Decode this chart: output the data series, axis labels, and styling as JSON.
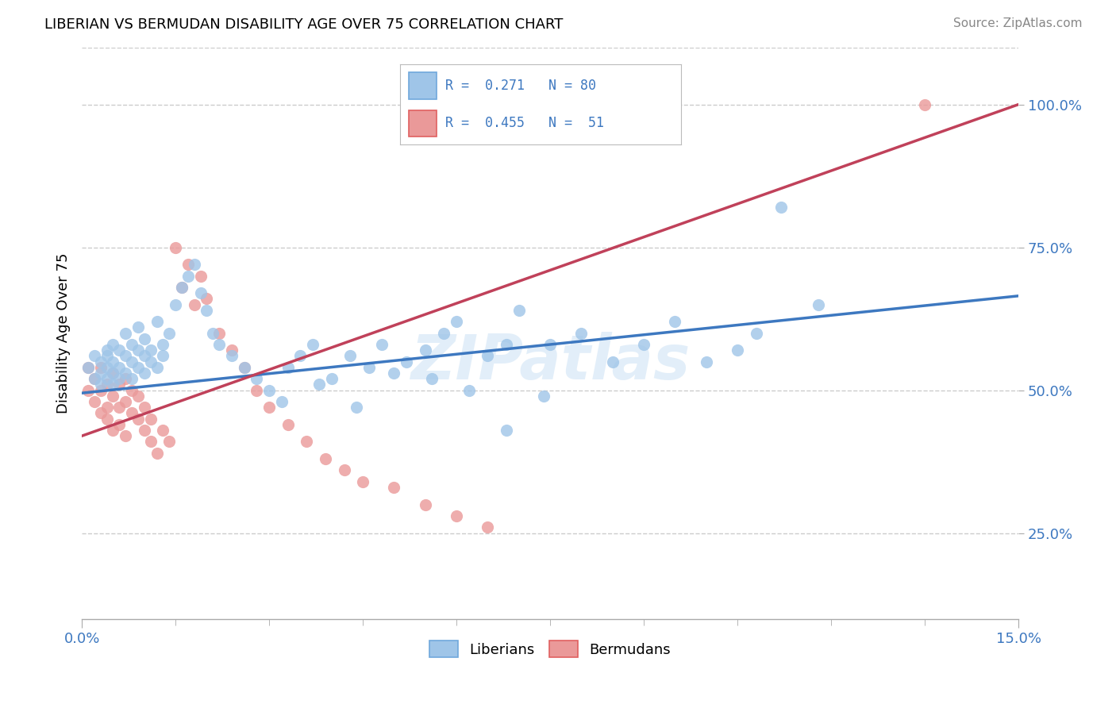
{
  "title": "LIBERIAN VS BERMUDAN DISABILITY AGE OVER 75 CORRELATION CHART",
  "source": "Source: ZipAtlas.com",
  "ylabel": "Disability Age Over 75",
  "legend_blue_label": "R =  0.271   N = 80",
  "legend_pink_label": "R =  0.455   N =  51",
  "legend_bottom_blue": "Liberians",
  "legend_bottom_pink": "Bermudans",
  "blue_color": "#9fc5e8",
  "pink_color": "#ea9999",
  "blue_line_color": "#3d78c0",
  "pink_line_color": "#c0415a",
  "xlim": [
    0.0,
    0.15
  ],
  "ylim": [
    0.1,
    1.1
  ],
  "blue_scatter_x": [
    0.001,
    0.002,
    0.002,
    0.003,
    0.003,
    0.003,
    0.004,
    0.004,
    0.004,
    0.004,
    0.005,
    0.005,
    0.005,
    0.005,
    0.006,
    0.006,
    0.006,
    0.007,
    0.007,
    0.007,
    0.008,
    0.008,
    0.008,
    0.009,
    0.009,
    0.009,
    0.01,
    0.01,
    0.01,
    0.011,
    0.011,
    0.012,
    0.012,
    0.013,
    0.013,
    0.014,
    0.015,
    0.016,
    0.017,
    0.018,
    0.019,
    0.02,
    0.021,
    0.022,
    0.024,
    0.026,
    0.028,
    0.03,
    0.033,
    0.035,
    0.037,
    0.04,
    0.043,
    0.046,
    0.048,
    0.052,
    0.055,
    0.058,
    0.06,
    0.065,
    0.068,
    0.07,
    0.075,
    0.08,
    0.085,
    0.09,
    0.095,
    0.1,
    0.105,
    0.108,
    0.032,
    0.038,
    0.044,
    0.05,
    0.056,
    0.062,
    0.068,
    0.074,
    0.112,
    0.118
  ],
  "blue_scatter_y": [
    0.54,
    0.52,
    0.56,
    0.53,
    0.55,
    0.51,
    0.54,
    0.57,
    0.52,
    0.56,
    0.53,
    0.55,
    0.58,
    0.51,
    0.57,
    0.54,
    0.52,
    0.56,
    0.6,
    0.53,
    0.55,
    0.58,
    0.52,
    0.57,
    0.54,
    0.61,
    0.56,
    0.53,
    0.59,
    0.55,
    0.57,
    0.54,
    0.62,
    0.58,
    0.56,
    0.6,
    0.65,
    0.68,
    0.7,
    0.72,
    0.67,
    0.64,
    0.6,
    0.58,
    0.56,
    0.54,
    0.52,
    0.5,
    0.54,
    0.56,
    0.58,
    0.52,
    0.56,
    0.54,
    0.58,
    0.55,
    0.57,
    0.6,
    0.62,
    0.56,
    0.58,
    0.64,
    0.58,
    0.6,
    0.55,
    0.58,
    0.62,
    0.55,
    0.57,
    0.6,
    0.48,
    0.51,
    0.47,
    0.53,
    0.52,
    0.5,
    0.43,
    0.49,
    0.82,
    0.65
  ],
  "pink_scatter_x": [
    0.001,
    0.001,
    0.002,
    0.002,
    0.003,
    0.003,
    0.003,
    0.004,
    0.004,
    0.004,
    0.005,
    0.005,
    0.005,
    0.006,
    0.006,
    0.006,
    0.007,
    0.007,
    0.007,
    0.008,
    0.008,
    0.009,
    0.009,
    0.01,
    0.01,
    0.011,
    0.011,
    0.012,
    0.013,
    0.014,
    0.015,
    0.016,
    0.017,
    0.018,
    0.019,
    0.02,
    0.022,
    0.024,
    0.026,
    0.028,
    0.03,
    0.033,
    0.036,
    0.039,
    0.042,
    0.045,
    0.05,
    0.055,
    0.06,
    0.065,
    0.135
  ],
  "pink_scatter_y": [
    0.5,
    0.54,
    0.48,
    0.52,
    0.46,
    0.5,
    0.54,
    0.47,
    0.51,
    0.45,
    0.49,
    0.53,
    0.43,
    0.47,
    0.51,
    0.44,
    0.48,
    0.52,
    0.42,
    0.46,
    0.5,
    0.45,
    0.49,
    0.43,
    0.47,
    0.41,
    0.45,
    0.39,
    0.43,
    0.41,
    0.75,
    0.68,
    0.72,
    0.65,
    0.7,
    0.66,
    0.6,
    0.57,
    0.54,
    0.5,
    0.47,
    0.44,
    0.41,
    0.38,
    0.36,
    0.34,
    0.33,
    0.3,
    0.28,
    0.26,
    1.0
  ],
  "blue_line_x": [
    0.0,
    0.15
  ],
  "blue_line_y": [
    0.495,
    0.665
  ],
  "pink_line_x": [
    0.0,
    0.15
  ],
  "pink_line_y": [
    0.42,
    1.0
  ]
}
